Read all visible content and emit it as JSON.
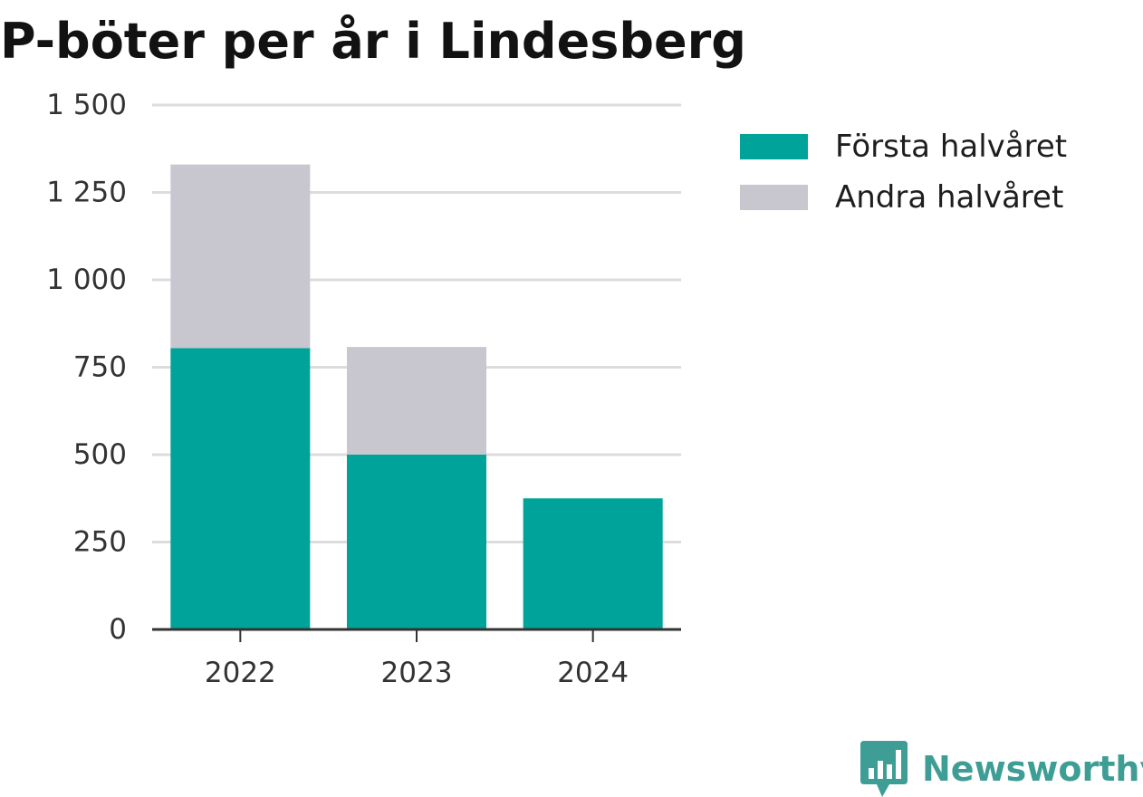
{
  "chart_data": {
    "type": "bar",
    "stacked": true,
    "title": "P-böter per år i Lindesberg",
    "xlabel": "",
    "ylabel": "",
    "categories": [
      "2022",
      "2023",
      "2024"
    ],
    "series": [
      {
        "name": "Första halvåret",
        "color": "#00a39a",
        "values": [
          805,
          500,
          375
        ]
      },
      {
        "name": "Andra halvåret",
        "color": "#c8c7cf",
        "values": [
          525,
          308,
          0
        ]
      }
    ],
    "ylim": [
      0,
      1500
    ],
    "yticks": [
      0,
      250,
      500,
      750,
      1000,
      1250,
      1500
    ],
    "ytick_labels": [
      "0",
      "250",
      "500",
      "750",
      "1 000",
      "1 250",
      "1 500"
    ],
    "grid": true,
    "legend_position": "top-right"
  },
  "branding": {
    "name": "Newsworthy",
    "icon": "newsworthy-logo-icon",
    "color": "#3e9e95"
  }
}
